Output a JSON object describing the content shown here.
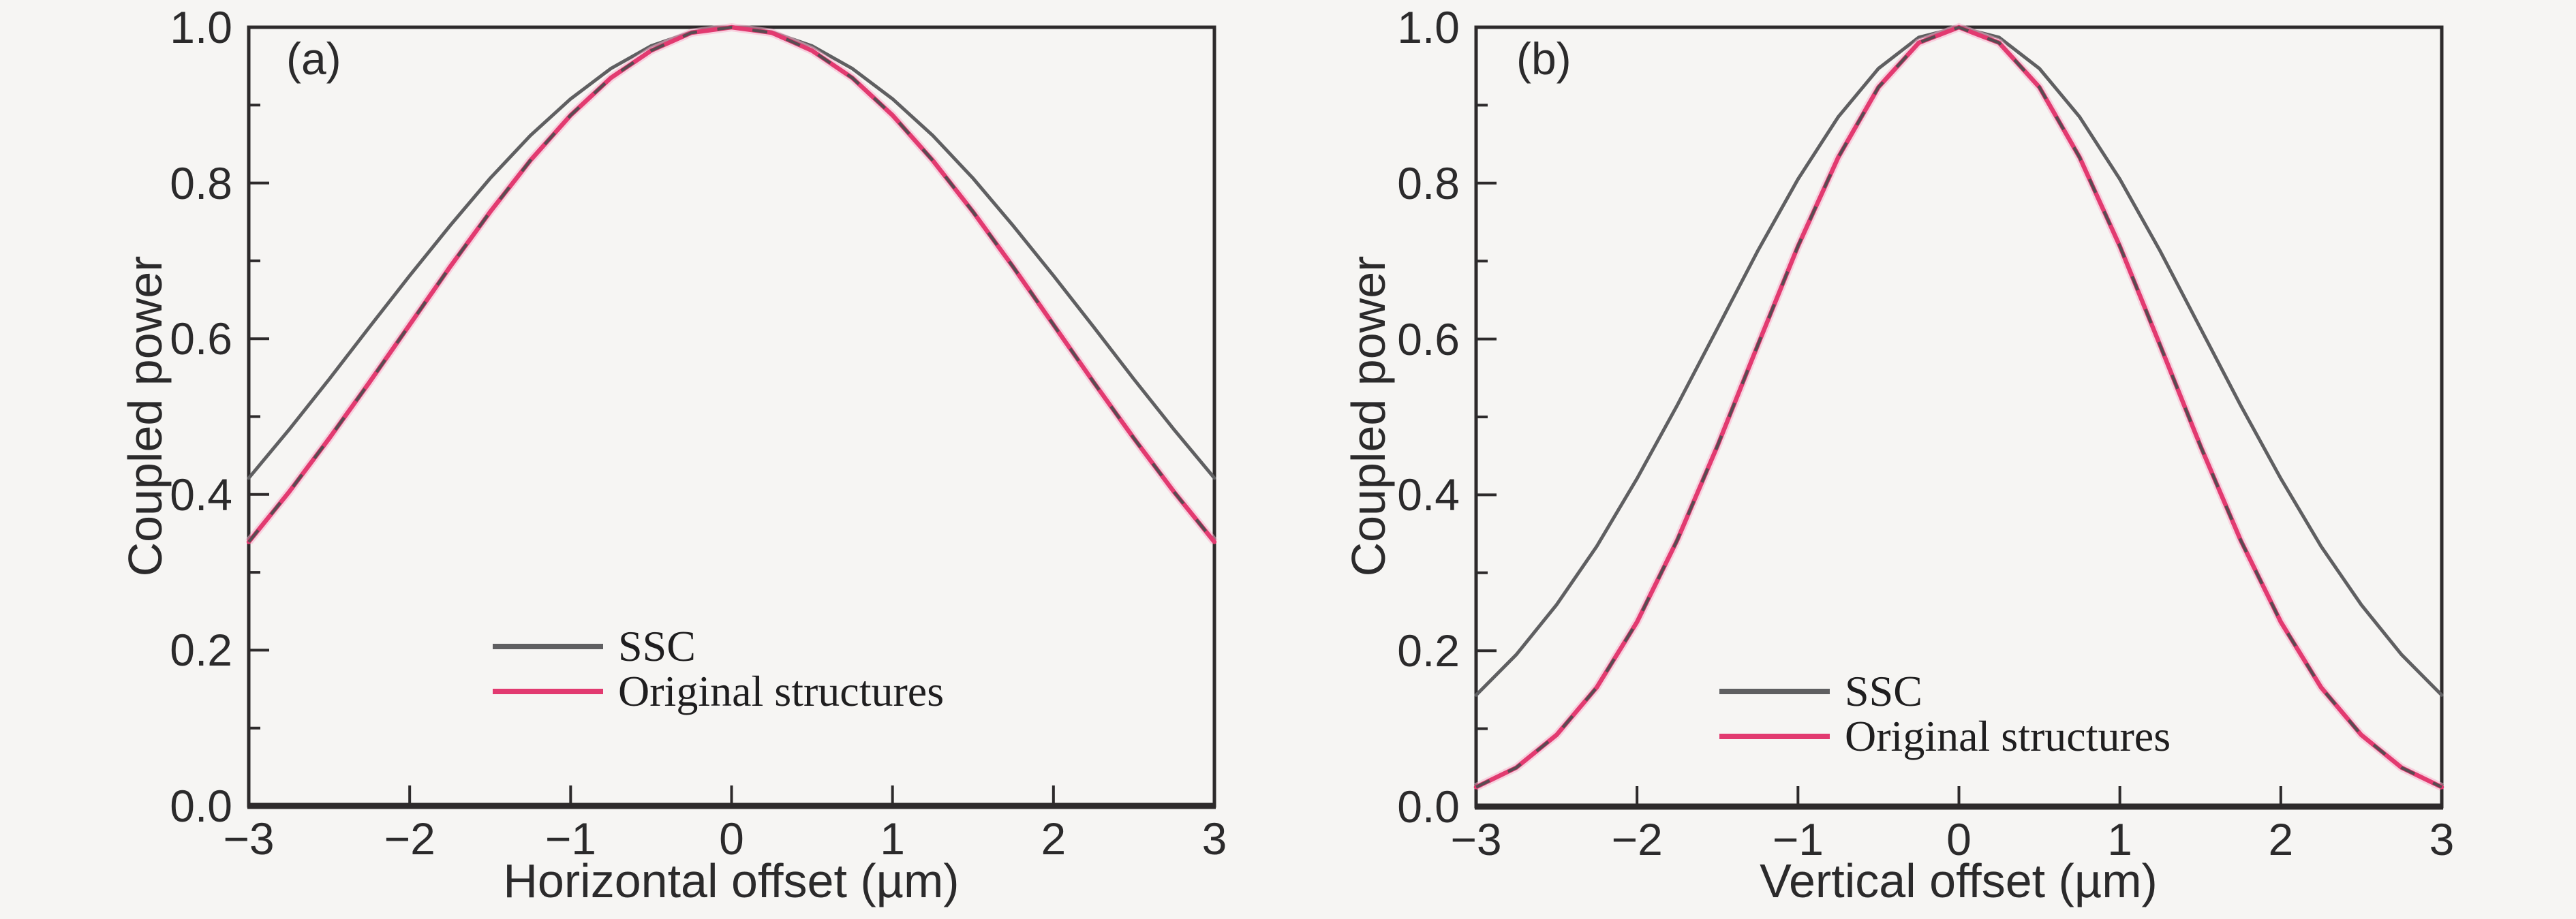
{
  "figure": {
    "colors": {
      "background": "#f6f5f3",
      "axis": "#2d2a2b",
      "text": "#2b2a2b",
      "ssc": "#5f5f61",
      "original": "#e23a70",
      "original_halo": "#f7b1cc",
      "original_dash": "#4c4c4e"
    },
    "panels": [
      {
        "tag": "(a)",
        "xlabel": "Horizontal offset (µm)",
        "ylabel": "Coupled power",
        "xtick_labels": [
          "−3",
          "−2",
          "−1",
          "0",
          "1",
          "2",
          "3"
        ],
        "ytick_labels": [
          "0.0",
          "0.2",
          "0.4",
          "0.6",
          "0.8",
          "1.0"
        ],
        "legend": [
          {
            "label": "SSC"
          },
          {
            "label": "Original structures"
          }
        ]
      },
      {
        "tag": "(b)",
        "xlabel": "Vertical offset (µm)",
        "ylabel": "Coupled power",
        "xtick_labels": [
          "−3",
          "−2",
          "−1",
          "0",
          "1",
          "2",
          "3"
        ],
        "ytick_labels": [
          "0.0",
          "0.2",
          "0.4",
          "0.6",
          "0.8",
          "1.0"
        ],
        "legend": [
          {
            "label": "SSC"
          },
          {
            "label": "Original structures"
          }
        ]
      }
    ]
  },
  "chart_data": [
    {
      "type": "line",
      "title": "(a)",
      "xlabel": "Horizontal offset (µm)",
      "ylabel": "Coupled power",
      "xlim": [
        -3,
        3
      ],
      "ylim": [
        0,
        1
      ],
      "xticks": [
        -3,
        -2,
        -1,
        0,
        1,
        2,
        3
      ],
      "yticks": [
        0,
        0.2,
        0.4,
        0.6,
        0.8,
        1.0
      ],
      "yticks_minor": [
        0.1,
        0.3,
        0.5,
        0.7,
        0.9
      ],
      "grid": false,
      "legend_position": "lower center inside",
      "x": [
        -3,
        -2.75,
        -2.5,
        -2.25,
        -2,
        -1.75,
        -1.5,
        -1.25,
        -1,
        -0.75,
        -0.5,
        -0.25,
        0,
        0.25,
        0.5,
        0.75,
        1,
        1.25,
        1.5,
        1.75,
        2,
        2.25,
        2.5,
        2.75,
        3
      ],
      "series": [
        {
          "name": "SSC",
          "values": [
            0.421,
            0.483,
            0.548,
            0.615,
            0.681,
            0.745,
            0.806,
            0.861,
            0.908,
            0.947,
            0.976,
            0.994,
            1.0,
            0.994,
            0.976,
            0.947,
            0.908,
            0.861,
            0.806,
            0.745,
            0.681,
            0.615,
            0.548,
            0.483,
            0.421
          ]
        },
        {
          "name": "Original structures",
          "values": [
            0.339,
            0.403,
            0.472,
            0.544,
            0.618,
            0.692,
            0.763,
            0.829,
            0.887,
            0.935,
            0.97,
            0.993,
            1.0,
            0.993,
            0.97,
            0.935,
            0.887,
            0.829,
            0.763,
            0.692,
            0.618,
            0.544,
            0.472,
            0.403,
            0.339
          ]
        }
      ]
    },
    {
      "type": "line",
      "title": "(b)",
      "xlabel": "Vertical offset (µm)",
      "ylabel": "Coupled power",
      "xlim": [
        -3,
        3
      ],
      "ylim": [
        0,
        1
      ],
      "xticks": [
        -3,
        -2,
        -1,
        0,
        1,
        2,
        3
      ],
      "yticks": [
        0,
        0.2,
        0.4,
        0.6,
        0.8,
        1.0
      ],
      "yticks_minor": [
        0.1,
        0.3,
        0.5,
        0.7,
        0.9
      ],
      "grid": false,
      "legend_position": "lower center inside",
      "x": [
        -3,
        -2.75,
        -2.5,
        -2.25,
        -2,
        -1.75,
        -1.5,
        -1.25,
        -1,
        -0.75,
        -0.5,
        -0.25,
        0,
        0.25,
        0.5,
        0.75,
        1,
        1.25,
        1.5,
        1.75,
        2,
        2.25,
        2.5,
        2.75,
        3
      ],
      "series": [
        {
          "name": "SSC",
          "values": [
            0.143,
            0.195,
            0.259,
            0.334,
            0.421,
            0.515,
            0.614,
            0.713,
            0.805,
            0.885,
            0.947,
            0.987,
            1.0,
            0.987,
            0.947,
            0.885,
            0.805,
            0.713,
            0.614,
            0.515,
            0.421,
            0.334,
            0.259,
            0.195,
            0.143
          ]
        },
        {
          "name": "Original structures",
          "values": [
            0.025,
            0.05,
            0.092,
            0.153,
            0.237,
            0.342,
            0.463,
            0.592,
            0.719,
            0.833,
            0.923,
            0.98,
            1.0,
            0.98,
            0.923,
            0.833,
            0.719,
            0.592,
            0.463,
            0.342,
            0.237,
            0.153,
            0.092,
            0.05,
            0.025
          ]
        }
      ]
    }
  ]
}
